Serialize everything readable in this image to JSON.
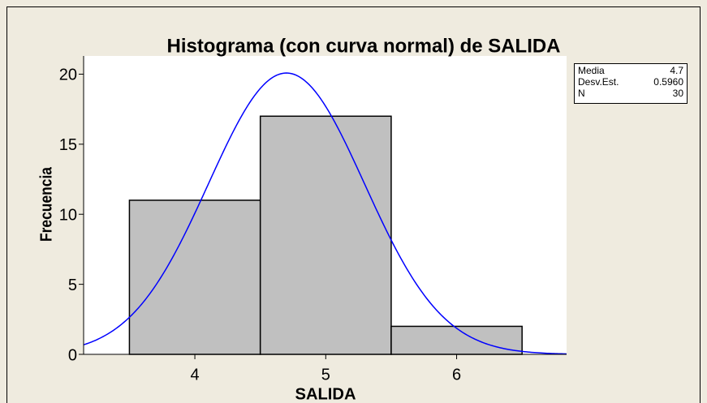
{
  "chart_data": {
    "type": "histogram",
    "title": "Histograma (con curva normal) de SALIDA",
    "x_label": "SALIDA",
    "y_label": "Frecuencia",
    "bins": [
      3.5,
      4.5,
      5.5,
      6.5
    ],
    "values": [
      11,
      17,
      2
    ],
    "color": "#c0c0c0",
    "curve_color": "#0000ff",
    "xlim": [
      3.15,
      6.84
    ],
    "xticks": [
      4,
      5,
      6
    ],
    "ylim": [
      0,
      21.3
    ],
    "yticks": [
      0,
      5,
      10,
      15,
      20
    ],
    "stats": {
      "labels": [
        "Media",
        "Desv.Est.",
        "N"
      ],
      "values": [
        4.7,
        0.596,
        30
      ],
      "value_labels": [
        "4.7",
        "0.5960",
        "30"
      ]
    }
  }
}
